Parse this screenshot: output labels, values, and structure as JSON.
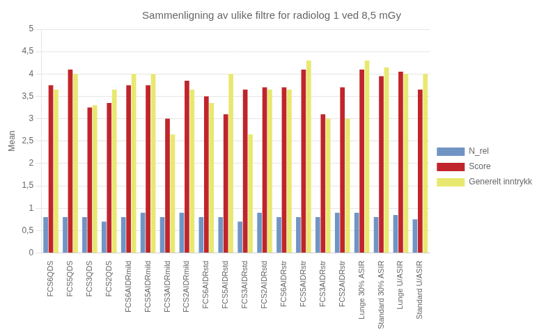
{
  "chart_data": {
    "type": "bar",
    "title": "Sammenligning av ulike filtre for radiolog 1 ved 8,5 mGy",
    "ylabel": "Mean",
    "categories": [
      "FCS6QDS",
      "FCS5QDS",
      "FCS3QDS",
      "FCS2QDS",
      "FCS6AIDRmild",
      "FCS5AIDRmild",
      "FCS3AIDRmild",
      "FCS2AIDRmild",
      "FCS6AIDRstd",
      "FCS5AIDRstd",
      "FCS3AIDRstd",
      "FCS2AIDRstd",
      "FCS6AIDRstr",
      "FCS5AIDRstr",
      "FCS3AIDRstr",
      "FCS2AIDRstr",
      "Lunge 30% ASIR",
      "Standard 30% ASIR",
      "Lunge U/ASIR",
      "Standard U/ASIR"
    ],
    "series": [
      {
        "name": "N_rel",
        "color": "#7094C4",
        "values": [
          0.8,
          0.8,
          0.8,
          0.7,
          0.8,
          0.9,
          0.8,
          0.9,
          0.8,
          0.8,
          0.7,
          0.9,
          0.8,
          0.8,
          0.8,
          0.9,
          0.9,
          0.8,
          0.85,
          0.75
        ]
      },
      {
        "name": "Score",
        "color": "#C0252B",
        "values": [
          3.75,
          4.1,
          3.25,
          3.35,
          3.75,
          3.75,
          3.0,
          3.85,
          3.5,
          3.1,
          3.65,
          3.7,
          3.7,
          4.1,
          3.1,
          3.7,
          4.1,
          3.95,
          4.05,
          3.65
        ]
      },
      {
        "name": "Generelt inntrykk",
        "color": "#E8E870",
        "values": [
          3.65,
          4.0,
          3.3,
          3.65,
          4.0,
          4.0,
          2.65,
          3.65,
          3.35,
          4.0,
          2.65,
          3.65,
          3.65,
          4.3,
          3.0,
          3.0,
          4.3,
          4.15,
          4.0,
          4.0
        ]
      }
    ],
    "ylim": [
      0,
      5
    ],
    "yticks": [
      0,
      {
        "value": 0.5,
        "label": "0,5"
      },
      1,
      {
        "value": 1.5,
        "label": "1,5"
      },
      2,
      {
        "value": 2.5,
        "label": "2,5"
      },
      3,
      {
        "value": 3.5,
        "label": "3,5"
      },
      4,
      {
        "value": 4.5,
        "label": "4,5"
      },
      5
    ],
    "grid": true,
    "legend": "right"
  }
}
